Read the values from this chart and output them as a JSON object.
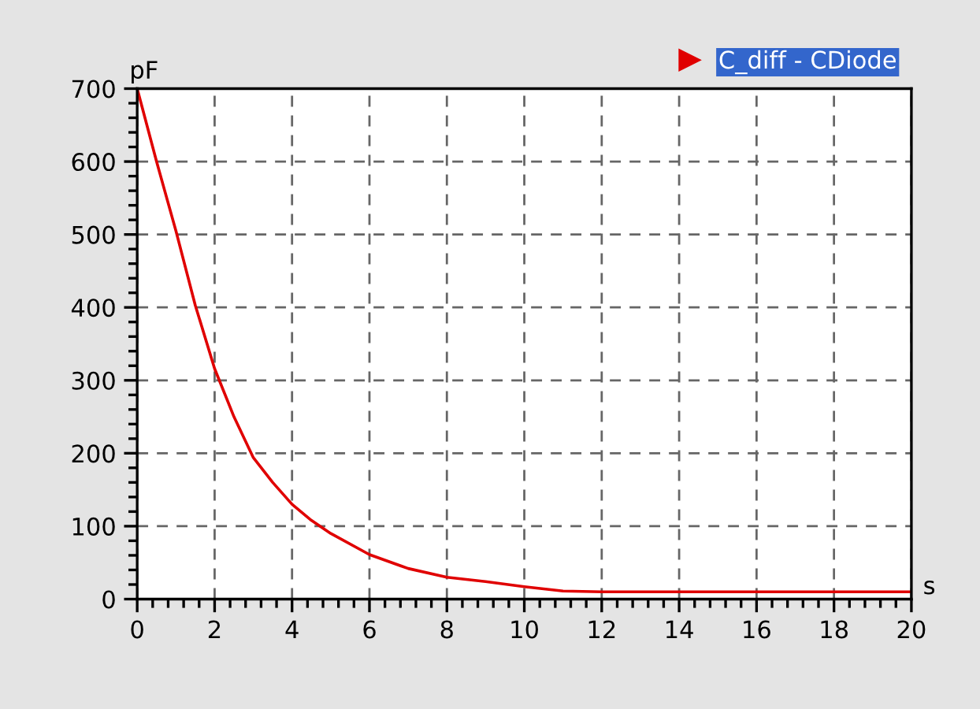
{
  "chart_data": {
    "type": "line",
    "xlabel": "s",
    "ylabel": "pF",
    "x": [
      0,
      0.5,
      1,
      1.5,
      2,
      2.5,
      3,
      3.5,
      4,
      4.5,
      5,
      6,
      7,
      8,
      9,
      10,
      11,
      12,
      14,
      16,
      18,
      20
    ],
    "series": [
      {
        "name": "C_diff - CDiode",
        "color": "#e00000",
        "values": [
          700,
          600,
          505,
          403,
          316,
          250,
          194,
          160,
          130,
          108,
          90,
          61,
          42,
          30,
          24,
          17,
          11,
          10,
          10,
          10,
          10,
          10
        ]
      }
    ],
    "xlim": [
      0,
      20
    ],
    "ylim": [
      0,
      700
    ],
    "xticks": [
      0,
      2,
      4,
      6,
      8,
      10,
      12,
      14,
      16,
      18,
      20
    ],
    "yticks": [
      0,
      100,
      200,
      300,
      400,
      500,
      600,
      700
    ],
    "grid": true,
    "legend": "top right",
    "marker": "none",
    "line_style": "solid"
  }
}
